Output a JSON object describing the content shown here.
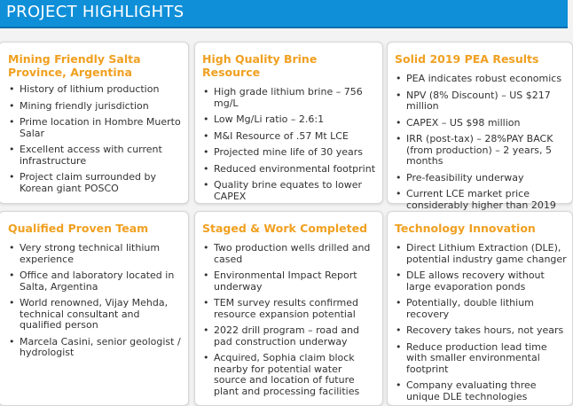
{
  "header": {
    "title": "PROJECT HIGHLIGHTS",
    "background_color": "#0f8fd8",
    "heading_color": "#f0a020"
  },
  "cards": [
    {
      "title": "Mining Friendly Salta Province, Argentina",
      "items": [
        "History of lithium production",
        "Mining friendly jurisdiction",
        "Prime location in Hombre Muerto Salar",
        "Excellent access with current infrastructure",
        "Project claim surrounded by Korean giant POSCO"
      ]
    },
    {
      "title": "High Quality Brine Resource",
      "items": [
        "High grade lithium brine – 756 mg/L",
        "Low Mg/Li ratio – 2.6:1",
        "M&I Resource of .57 Mt LCE",
        "Projected mine life of 30 years",
        "Reduced environmental footprint",
        "Quality brine equates to lower CAPEX"
      ]
    },
    {
      "title": "Solid 2019 PEA Results",
      "items": [
        "PEA indicates robust economics",
        "NPV (8% Discount) – US $217 million",
        "CAPEX – US  $98 million",
        "IRR (post-tax) – 28%PAY BACK (from production) – 2 years, 5 months",
        "Pre-feasibility underway",
        "Current LCE market price considerably higher than 2019"
      ]
    },
    {
      "title": "Qualified Proven Team",
      "items": [
        "Very strong technical lithium experience",
        "Office and laboratory located in Salta, Argentina",
        "World renowned, Vijay Mehda, technical consultant and qualified person",
        "Marcela Casini, senior geologist / hydrologist"
      ]
    },
    {
      "title": "Staged & Work Completed",
      "items": [
        "Two production wells drilled and cased",
        "Environmental Impact Report underway",
        "TEM survey results confirmed resource expansion potential",
        "2022 drill program – road and pad construction underway",
        "Acquired, Sophia claim block nearby for potential water source and location of future plant and processing facilities"
      ]
    },
    {
      "title": "Technology Innovation",
      "items": [
        "Direct Lithium Extraction (DLE), potential industry game changer",
        "DLE allows recovery without large evaporation ponds",
        "Potentially, double lithium recovery",
        "Recovery takes hours, not years",
        "Reduce production lead time with smaller environmental footprint",
        "Company evaluating three unique DLE technologies"
      ]
    }
  ]
}
